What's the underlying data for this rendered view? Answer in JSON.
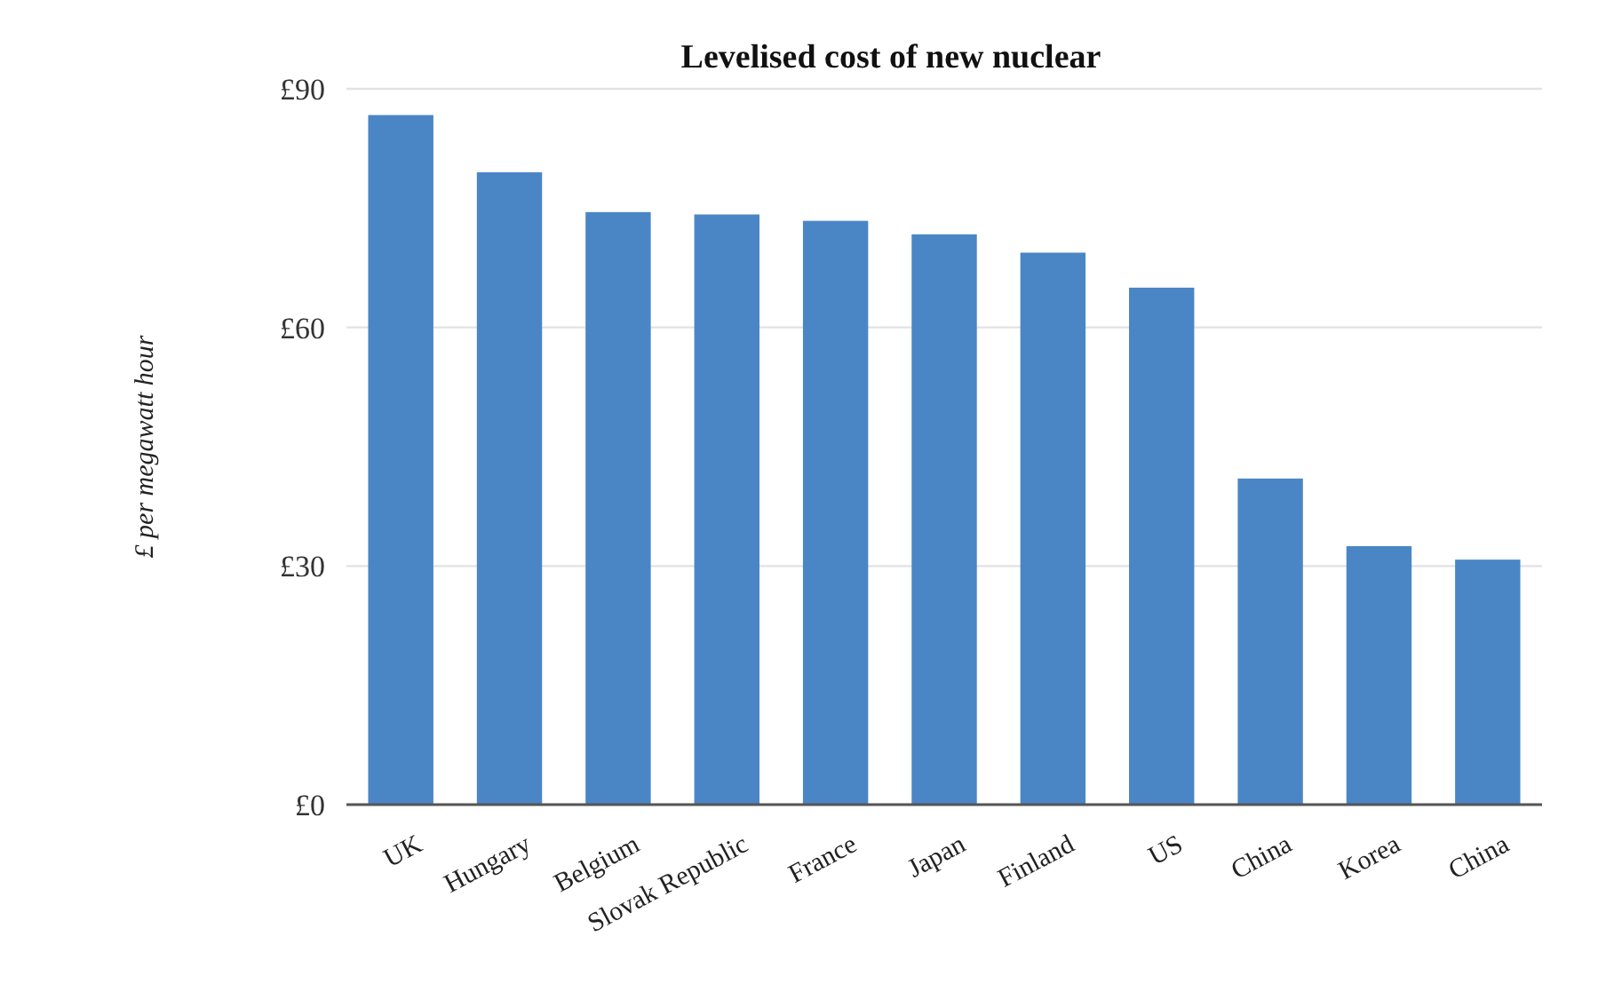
{
  "chart_data": {
    "type": "bar",
    "title": "Levelised cost of new nuclear",
    "ylabel": "£ per megawatt hour",
    "categories": [
      "UK",
      "Hungary",
      "Belgium",
      "Slovak Republic",
      "France",
      "Japan",
      "Finland",
      "US",
      "China",
      "Korea",
      "China"
    ],
    "values": [
      86.7,
      79.5,
      74.5,
      74.2,
      73.4,
      71.7,
      69.4,
      65,
      41,
      32.5,
      30.8
    ],
    "color": "#4a86c5",
    "ylim": [
      0,
      90
    ],
    "yticks": [
      {
        "value": 0,
        "label": "£0"
      },
      {
        "value": 30,
        "label": "£30"
      },
      {
        "value": 60,
        "label": "£60"
      },
      {
        "value": 90,
        "label": "£90"
      }
    ],
    "grid": "y"
  }
}
